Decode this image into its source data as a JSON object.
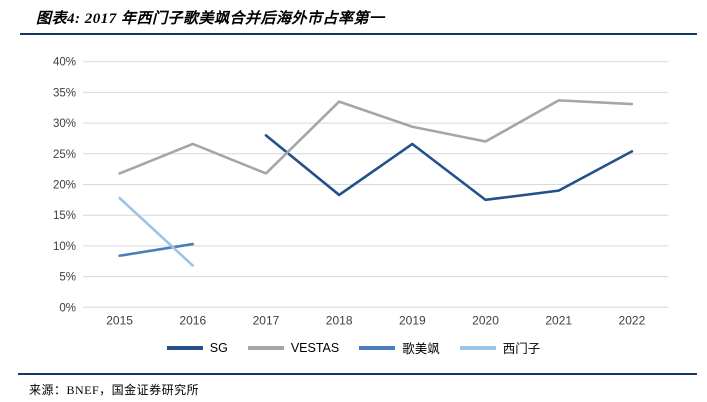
{
  "header": {
    "title": "图表4: 2017 年西门子歌美飒合并后海外市占率第一"
  },
  "footer": {
    "source": "来源：BNEF，国金证券研究所"
  },
  "colors": {
    "rule": "#17375E",
    "grid": "#D9D9D9",
    "axis_text": "#404040"
  },
  "chart_data": {
    "type": "line",
    "title": "2017 年西门子歌美飒合并后海外市占率第一",
    "categories": [
      "2015",
      "2016",
      "2017",
      "2018",
      "2019",
      "2020",
      "2021",
      "2022"
    ],
    "series": [
      {
        "name": "SG",
        "color": "#24518B",
        "values": [
          null,
          null,
          28.0,
          18.3,
          26.6,
          17.5,
          19.0,
          25.4
        ]
      },
      {
        "name": "VESTAS",
        "color": "#A6A6A6",
        "values": [
          21.8,
          26.6,
          21.8,
          33.5,
          29.4,
          27.0,
          33.7,
          33.1
        ]
      },
      {
        "name": "歌美飒",
        "color": "#4A7EBB",
        "values": [
          8.4,
          10.3,
          null,
          null,
          null,
          null,
          null,
          null
        ]
      },
      {
        "name": "西门子",
        "color": "#9DC3E6",
        "values": [
          17.8,
          6.8,
          null,
          null,
          null,
          null,
          null,
          null
        ]
      }
    ],
    "ylim": [
      0,
      40
    ],
    "ytick_step": 5,
    "ytick_labels": [
      "0%",
      "5%",
      "10%",
      "15%",
      "20%",
      "25%",
      "30%",
      "35%",
      "40%"
    ],
    "grid": "horizontal",
    "legend_position": "bottom"
  }
}
